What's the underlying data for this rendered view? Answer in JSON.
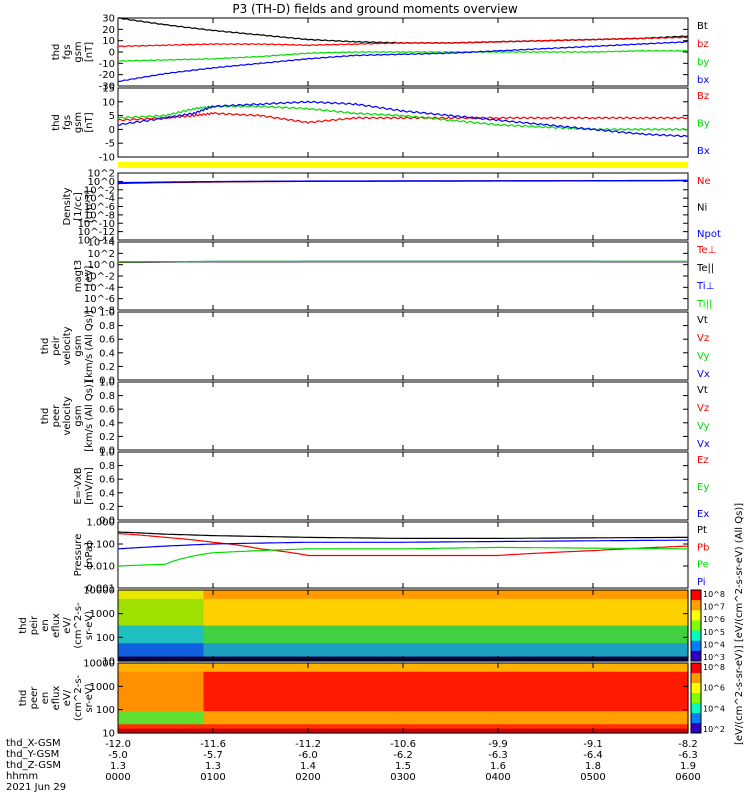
{
  "title": "P3 (TH-D) fields and ground moments overview",
  "colors": {
    "black": "#000000",
    "red": "#ff0000",
    "green": "#00dd00",
    "blue": "#0000ff",
    "yellow": "#ffff00"
  },
  "chart_data": [
    {
      "type": "line",
      "panel": "fgs_gsm",
      "ylabel": [
        "thd",
        "fgs",
        "gsm",
        "[nT]"
      ],
      "yticks": [
        "30",
        "20",
        "10",
        "0",
        "-10",
        "-20",
        "-30"
      ],
      "ylim": [
        -30,
        30
      ],
      "series": [
        {
          "name": "Bt",
          "color": "black",
          "x": [
            0,
            0.5,
            1,
            1.5,
            2,
            2.5,
            3,
            3.5,
            4,
            4.5,
            5,
            5.5,
            6
          ],
          "values": [
            30,
            24,
            19,
            15,
            11,
            9,
            8,
            8,
            9,
            10,
            11,
            12,
            14
          ]
        },
        {
          "name": "bz",
          "color": "red",
          "x": [
            0,
            0.5,
            1,
            1.5,
            2,
            2.5,
            3,
            3.5,
            4,
            4.5,
            5,
            5.5,
            6
          ],
          "values": [
            5,
            6,
            7,
            7,
            6,
            7,
            8,
            8,
            9,
            10,
            11,
            12,
            13
          ]
        },
        {
          "name": "by",
          "color": "green",
          "x": [
            0,
            0.5,
            1,
            1.5,
            2,
            2.5,
            3,
            3.5,
            4,
            4.5,
            5,
            5.5,
            6
          ],
          "values": [
            -8,
            -7,
            -6,
            -4,
            -1,
            0,
            0,
            0,
            0,
            0,
            0,
            1,
            1
          ]
        },
        {
          "name": "bx",
          "color": "blue",
          "x": [
            0,
            0.5,
            1,
            1.5,
            2,
            2.5,
            3,
            3.5,
            4,
            4.5,
            5,
            5.5,
            6
          ],
          "values": [
            -26,
            -19,
            -14,
            -10,
            -6,
            -3,
            -2,
            -1,
            1,
            3,
            5,
            7,
            9
          ]
        }
      ]
    },
    {
      "type": "line",
      "panel": "fgs_gsm_zoom",
      "ylabel": [
        "thd",
        "fgs",
        "gsm",
        "[nT]"
      ],
      "yticks": [
        "15",
        "10",
        "5",
        "0",
        "-5",
        "-10"
      ],
      "ylim": [
        -15,
        15
      ],
      "series": [
        {
          "name": "Bz",
          "color": "red",
          "x": [
            0,
            0.5,
            0.8,
            1,
            1.5,
            2,
            2.5,
            3,
            3.5,
            4,
            4.5,
            5,
            5.5,
            6
          ],
          "values": [
            1,
            2,
            3,
            4,
            3,
            0,
            2,
            2,
            2,
            2,
            2,
            2,
            2,
            2
          ]
        },
        {
          "name": "By",
          "color": "green",
          "x": [
            0,
            0.5,
            0.8,
            1,
            1.5,
            2,
            2.5,
            3,
            3.5,
            4,
            4.5,
            5,
            5.5,
            6
          ],
          "values": [
            2,
            3,
            6,
            7,
            7,
            6,
            4,
            3,
            1,
            -1,
            -2,
            -3,
            -3,
            -3
          ]
        },
        {
          "name": "Bx",
          "color": "blue",
          "x": [
            0,
            0.5,
            0.8,
            1,
            1.5,
            2,
            2.5,
            3,
            3.5,
            4,
            4.5,
            5,
            5.5,
            6
          ],
          "values": [
            -1,
            2,
            4,
            7,
            8,
            9,
            8,
            5,
            3,
            1,
            -1,
            -3,
            -5,
            -6
          ]
        }
      ]
    },
    {
      "type": "line",
      "panel": "density",
      "ylog": true,
      "ylabel": [
        "Density",
        "[1/cc]",
        "[cm-3]"
      ],
      "yticks": [
        "10^2",
        "10^0",
        "10^-2",
        "10^-4",
        "10^-6",
        "10^-8",
        "10^-10",
        "10^-12",
        "10^-14"
      ],
      "ylim": [
        -14,
        2
      ],
      "series": [
        {
          "name": "Ne",
          "color": "red",
          "x": [
            0,
            1,
            2,
            3,
            4,
            5,
            6
          ],
          "values": [
            0.3,
            0.7,
            1.0,
            1.1,
            1.2,
            1.3,
            1.5
          ]
        },
        {
          "name": "Ni",
          "color": "black",
          "x": [
            0,
            1,
            2,
            3,
            4,
            5,
            6
          ],
          "values": [
            0.4,
            0.8,
            1.1,
            1.2,
            1.3,
            1.4,
            1.6
          ]
        },
        {
          "name": "Npot",
          "color": "blue",
          "x": [
            0,
            1,
            2,
            3,
            4,
            5,
            6
          ],
          "values": [
            0.5,
            0.9,
            1.2,
            1.3,
            1.4,
            1.5,
            1.7
          ]
        }
      ]
    },
    {
      "type": "line",
      "panel": "temperature",
      "ylog": true,
      "ylabel": [
        "magt3",
        "[eV]"
      ],
      "yticks": [
        "10^4",
        "10^2",
        "10^0",
        "10^-2",
        "10^-4",
        "10^-6",
        "10^-8"
      ],
      "ylim": [
        -8,
        4
      ],
      "series": [
        {
          "name": "Te⊥",
          "color": "red",
          "x": [
            0,
            1,
            2,
            3,
            4,
            5,
            6
          ],
          "values": [
            2.6,
            3.3,
            3.4,
            3.4,
            3.4,
            3.4,
            3.3
          ]
        },
        {
          "name": "Te||",
          "color": "black",
          "x": [
            0,
            1,
            2,
            3,
            4,
            5,
            6
          ],
          "values": [
            2.7,
            3.4,
            3.5,
            3.5,
            3.5,
            3.5,
            3.4
          ]
        },
        {
          "name": "Ti⊥",
          "color": "blue",
          "x": [
            0,
            1,
            2,
            3,
            4,
            5,
            6
          ],
          "values": [
            3.0,
            3.6,
            3.7,
            3.7,
            3.7,
            3.7,
            3.6
          ]
        },
        {
          "name": "Ti||",
          "color": "green",
          "x": [
            0,
            1,
            2,
            3,
            4,
            5,
            6
          ],
          "values": [
            3.1,
            3.7,
            3.8,
            3.8,
            3.8,
            3.8,
            3.7
          ]
        }
      ]
    },
    {
      "type": "line",
      "panel": "peir_velocity",
      "ylabel": [
        "thd",
        "peir",
        "velocity",
        "gsm",
        "[km/s (All Qs)]"
      ],
      "yticks": [
        "1.0",
        "0.8",
        "0.6",
        "0.4",
        "0.2",
        "0.0"
      ],
      "ylim": [
        0,
        1
      ],
      "legend": [
        "Vt",
        "Vz",
        "Vy",
        "Vx"
      ],
      "series": []
    },
    {
      "type": "line",
      "panel": "peer_velocity",
      "ylabel": [
        "thd",
        "peer",
        "velocity",
        "gsm",
        "[km/s (All Qs)]"
      ],
      "yticks": [
        "1.0",
        "0.8",
        "0.6",
        "0.4",
        "0.2",
        "0.0"
      ],
      "ylim": [
        0,
        1
      ],
      "legend": [
        "Vt",
        "Vz",
        "Vy",
        "Vx"
      ],
      "series": []
    },
    {
      "type": "line",
      "panel": "efield",
      "ylabel": [
        "E=-VxB",
        "[mV/m]"
      ],
      "yticks": [
        "1.0",
        "0.8",
        "0.6",
        "0.4",
        "0.2",
        "0.0"
      ],
      "ylim": [
        0,
        1
      ],
      "legend": [
        "Ez",
        "Ey",
        "Ex"
      ],
      "series": []
    },
    {
      "type": "line",
      "panel": "pressure",
      "ylog": true,
      "ylabel": [
        "Pressure",
        "[nPa]"
      ],
      "yticks": [
        "1.000",
        "0.100",
        "0.010",
        "0.001"
      ],
      "ylim": [
        -3,
        0
      ],
      "series": [
        {
          "name": "Pt",
          "color": "black",
          "x": [
            0,
            0.5,
            1,
            2,
            3,
            4,
            5,
            6
          ],
          "values": [
            0.35,
            0.28,
            0.24,
            0.2,
            0.18,
            0.18,
            0.19,
            0.2
          ]
        },
        {
          "name": "Pb",
          "color": "red",
          "x": [
            0,
            0.5,
            1,
            1.5,
            2,
            3,
            4,
            5,
            6
          ],
          "values": [
            0.3,
            0.2,
            0.12,
            0.06,
            0.03,
            0.03,
            0.03,
            0.05,
            0.08
          ]
        },
        {
          "name": "Pe",
          "color": "green",
          "x": [
            0,
            0.5,
            1,
            1.5,
            2,
            3,
            4,
            5,
            6
          ],
          "values": [
            0.01,
            0.012,
            0.04,
            0.05,
            0.06,
            0.06,
            0.07,
            0.065,
            0.06
          ]
        },
        {
          "name": "Pi",
          "color": "blue",
          "x": [
            0,
            0.5,
            1,
            1.5,
            2,
            3,
            4,
            5,
            6
          ],
          "values": [
            0.06,
            0.08,
            0.1,
            0.11,
            0.12,
            0.12,
            0.13,
            0.14,
            0.15
          ]
        }
      ]
    },
    {
      "type": "heatmap",
      "panel": "peir_eflux",
      "ylabel": [
        "thd",
        "peir",
        "en",
        "eflux",
        "eV/",
        "(cm^2-s-",
        "sr-eV)"
      ],
      "yticks": [
        "10000",
        "1000",
        "100",
        "10"
      ],
      "ylim": [
        5,
        25000
      ],
      "ylog": true,
      "colorbar": {
        "ticks": [
          "10^8",
          "10^7",
          "10^6",
          "10^5",
          "10^4",
          "10^3"
        ]
      }
    },
    {
      "type": "heatmap",
      "panel": "peer_eflux",
      "ylabel": [
        "thd",
        "peer",
        "en",
        "eflux",
        "eV/",
        "(cm^2-s-",
        "sr-eV)"
      ],
      "yticks": [
        "10000",
        "1000",
        "100",
        "10"
      ],
      "ylim": [
        5,
        25000
      ],
      "ylog": true,
      "colorbar": {
        "ticks": [
          "10^8",
          "10^6",
          "10^4",
          "10^2"
        ]
      },
      "colorbar_title": "[eV/(cm^2-s-sr-eV)]  [eV/(cm^2-s-sr-eV) (All Qs)]"
    }
  ],
  "xaxis": {
    "hhmm": [
      "0000",
      "0100",
      "0200",
      "0300",
      "0400",
      "0500",
      "0600"
    ],
    "X_GSM": [
      "-12.0",
      "-11.6",
      "-11.2",
      "-10.6",
      "-9.9",
      "-9.1",
      "-8.2"
    ],
    "Y_GSM": [
      "-5.0",
      "-5.7",
      "-6.0",
      "-6.2",
      "-6.3",
      "-6.4",
      "-6.3"
    ],
    "Z_GSM": [
      "1.3",
      "1.3",
      "1.4",
      "1.5",
      "1.6",
      "1.8",
      "1.9"
    ]
  },
  "ephem_labels": {
    "x": "thd_X-GSM",
    "y": "thd_Y-GSM",
    "z": "thd_Z-GSM",
    "hhmm": "hhmm",
    "date": "2021 Jun 29"
  }
}
